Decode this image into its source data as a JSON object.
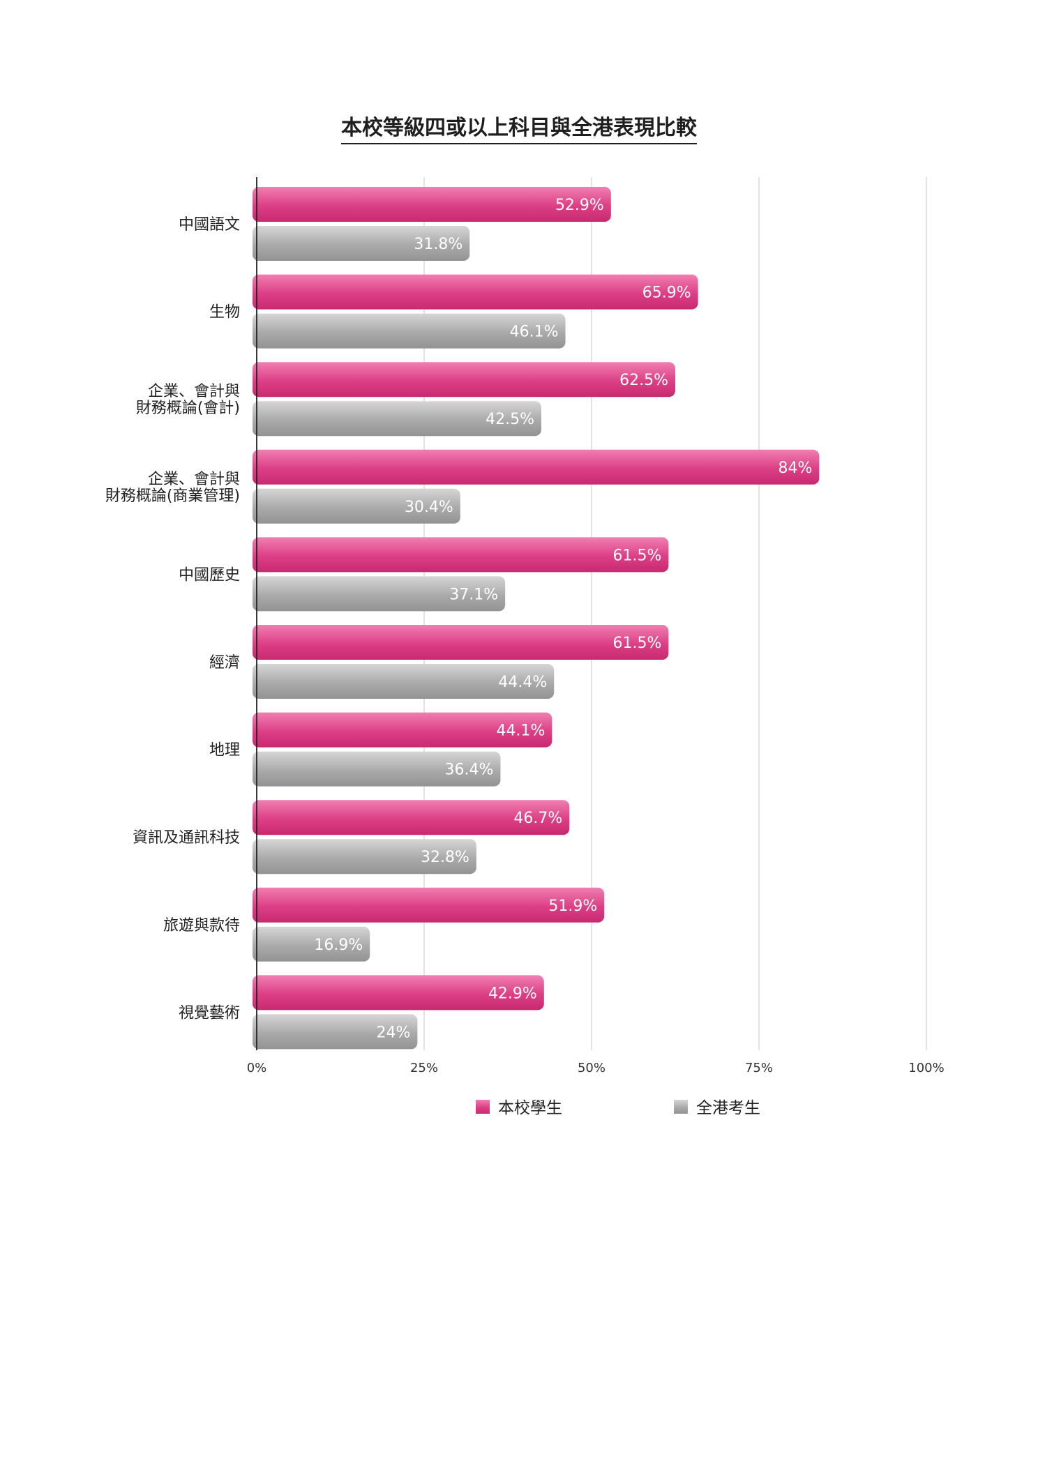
{
  "chart_data": {
    "type": "bar",
    "orientation": "horizontal",
    "title": "本校等級四或以上科目與全港表現比較",
    "categories": [
      [
        "中國語文"
      ],
      [
        "生物"
      ],
      [
        "企業、會計與",
        "財務概論(會計)"
      ],
      [
        "企業、會計與",
        "財務概論(商業管理)"
      ],
      [
        "中國歷史"
      ],
      [
        "經濟"
      ],
      [
        "地理"
      ],
      [
        "資訊及通訊科技"
      ],
      [
        "旅遊與款待"
      ],
      [
        "視覺藝術"
      ]
    ],
    "series": [
      {
        "name": "本校學生",
        "color": "#d8357e",
        "values": [
          52.9,
          65.9,
          62.5,
          84,
          61.5,
          61.5,
          44.1,
          46.7,
          51.9,
          42.9
        ],
        "labels": [
          "52.9%",
          "65.9%",
          "62.5%",
          "84%",
          "61.5%",
          "61.5%",
          "44.1%",
          "46.7%",
          "51.9%",
          "42.9%"
        ]
      },
      {
        "name": "全港考生",
        "color": "#a8a8a8",
        "values": [
          31.8,
          46.1,
          42.5,
          30.4,
          37.1,
          44.4,
          36.4,
          32.8,
          16.9,
          24
        ],
        "labels": [
          "31.8%",
          "46.1%",
          "42.5%",
          "30.4%",
          "37.1%",
          "44.4%",
          "36.4%",
          "32.8%",
          "16.9%",
          "24%"
        ]
      }
    ],
    "xlim": [
      0,
      100
    ],
    "xticks": [
      0,
      25,
      50,
      75,
      100
    ],
    "xtick_labels": [
      "0%",
      "25%",
      "50%",
      "75%",
      "100%"
    ],
    "grid": true,
    "legend_position": "bottom"
  }
}
